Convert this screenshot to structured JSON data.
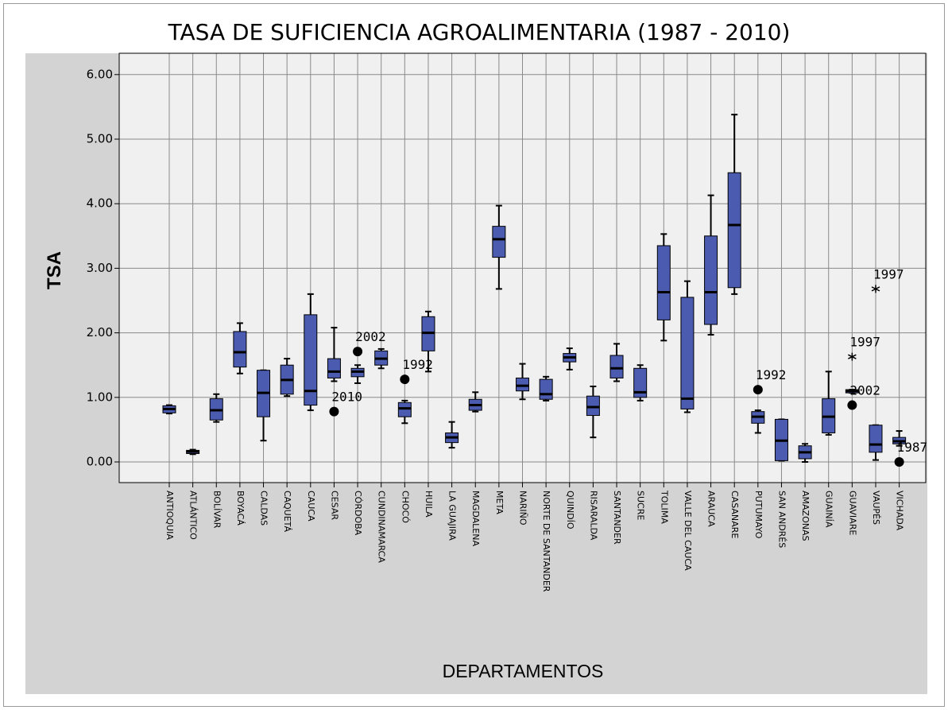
{
  "chart_data": {
    "type": "box",
    "title": "TASA DE SUFICIENCIA AGROALIMENTARIA (1987 - 2010)",
    "x_label": "DEPARTAMENTOS",
    "y_label": "TSA",
    "color": "#4a5bb0",
    "grid": true,
    "ylim": [
      -0.32,
      6.33
    ],
    "yticks": [
      {
        "value": 0,
        "label": "0.00"
      },
      {
        "value": 1,
        "label": "1.00"
      },
      {
        "value": 2,
        "label": "2.00"
      },
      {
        "value": 3,
        "label": "3.00"
      },
      {
        "value": 4,
        "label": "4.00"
      },
      {
        "value": 5,
        "label": "5.00"
      },
      {
        "value": 6,
        "label": "6.00"
      }
    ],
    "categories": [
      "ANTIOQUIA",
      "ATLÁNTICO",
      "BOLÍVAR",
      "BOYACÁ",
      "CALDAS",
      "CAQUETÁ",
      "CAUCA",
      "CESAR",
      "CÓRDOBA",
      "CUNDINAMARCA",
      "CHOCÓ",
      "HUILA",
      "LA GUAJIRA",
      "MAGDALENA",
      "META",
      "NARIÑO",
      "NORTE DE SANTANDER",
      "QUINDÍO",
      "RISARALDA",
      "SANTANDER",
      "SUCRE",
      "TOLIMA",
      "VALLE DEL CAUCA",
      "ARAUCA",
      "CASANARE",
      "PUTUMAYO",
      "SAN ANDRÉS",
      "AMAZONAS",
      "GUAINÍA",
      "GUAVIARE",
      "VAUPÉS",
      "VICHADA"
    ],
    "boxes": [
      {
        "low": 0.75,
        "q1": 0.76,
        "median": 0.82,
        "q3": 0.87,
        "high": 0.88
      },
      {
        "low": 0.12,
        "q1": 0.13,
        "median": 0.16,
        "q3": 0.18,
        "high": 0.19
      },
      {
        "low": 0.62,
        "q1": 0.65,
        "median": 0.8,
        "q3": 0.98,
        "high": 1.05
      },
      {
        "low": 1.37,
        "q1": 1.47,
        "median": 1.7,
        "q3": 2.02,
        "high": 2.15
      },
      {
        "low": 0.33,
        "q1": 0.7,
        "median": 1.07,
        "q3": 1.42,
        "high": 1.42
      },
      {
        "low": 1.02,
        "q1": 1.05,
        "median": 1.27,
        "q3": 1.5,
        "high": 1.6
      },
      {
        "low": 0.8,
        "q1": 0.88,
        "median": 1.1,
        "q3": 2.28,
        "high": 2.6
      },
      {
        "low": 1.25,
        "q1": 1.3,
        "median": 1.4,
        "q3": 1.6,
        "high": 2.08,
        "outliers": [
          {
            "value": 0.78,
            "label": "2010",
            "marker": "circle"
          }
        ]
      },
      {
        "low": 1.22,
        "q1": 1.32,
        "median": 1.4,
        "q3": 1.45,
        "high": 1.5,
        "outliers": [
          {
            "value": 1.71,
            "label": "2002",
            "marker": "circle"
          }
        ]
      },
      {
        "low": 1.45,
        "q1": 1.5,
        "median": 1.6,
        "q3": 1.72,
        "high": 1.75
      },
      {
        "low": 0.6,
        "q1": 0.7,
        "median": 0.83,
        "q3": 0.92,
        "high": 0.95,
        "outliers": [
          {
            "value": 1.28,
            "label": "1992",
            "marker": "circle"
          }
        ]
      },
      {
        "low": 1.4,
        "q1": 1.72,
        "median": 2.0,
        "q3": 2.25,
        "high": 2.33
      },
      {
        "low": 0.22,
        "q1": 0.3,
        "median": 0.38,
        "q3": 0.45,
        "high": 0.62
      },
      {
        "low": 0.78,
        "q1": 0.8,
        "median": 0.88,
        "q3": 0.97,
        "high": 1.08
      },
      {
        "low": 2.68,
        "q1": 3.17,
        "median": 3.45,
        "q3": 3.65,
        "high": 3.97
      },
      {
        "low": 0.97,
        "q1": 1.1,
        "median": 1.18,
        "q3": 1.3,
        "high": 1.52
      },
      {
        "low": 0.95,
        "q1": 0.97,
        "median": 1.05,
        "q3": 1.28,
        "high": 1.32
      },
      {
        "low": 1.43,
        "q1": 1.55,
        "median": 1.62,
        "q3": 1.68,
        "high": 1.76
      },
      {
        "low": 0.38,
        "q1": 0.72,
        "median": 0.85,
        "q3": 1.02,
        "high": 1.17
      },
      {
        "low": 1.25,
        "q1": 1.3,
        "median": 1.45,
        "q3": 1.65,
        "high": 1.83
      },
      {
        "low": 0.95,
        "q1": 1.0,
        "median": 1.08,
        "q3": 1.45,
        "high": 1.5
      },
      {
        "low": 1.88,
        "q1": 2.2,
        "median": 2.63,
        "q3": 3.35,
        "high": 3.53
      },
      {
        "low": 0.77,
        "q1": 0.82,
        "median": 0.98,
        "q3": 2.55,
        "high": 2.8
      },
      {
        "low": 1.97,
        "q1": 2.13,
        "median": 2.63,
        "q3": 3.5,
        "high": 4.13
      },
      {
        "low": 2.6,
        "q1": 2.7,
        "median": 3.67,
        "q3": 4.48,
        "high": 5.38
      },
      {
        "low": 0.45,
        "q1": 0.6,
        "median": 0.7,
        "q3": 0.78,
        "high": 0.8,
        "outliers": [
          {
            "value": 1.12,
            "label": "1992",
            "marker": "circle"
          }
        ]
      },
      {
        "low": 0.02,
        "q1": 0.02,
        "median": 0.33,
        "q3": 0.66,
        "high": 0.66
      },
      {
        "low": 0.0,
        "q1": 0.05,
        "median": 0.15,
        "q3": 0.25,
        "high": 0.28
      },
      {
        "low": 0.42,
        "q1": 0.45,
        "median": 0.7,
        "q3": 0.98,
        "high": 1.4
      },
      {
        "low": 1.07,
        "q1": 1.07,
        "median": 1.1,
        "q3": 1.12,
        "high": 1.12,
        "outliers": [
          {
            "value": 0.88,
            "label": "2002",
            "marker": "circle"
          },
          {
            "value": 1.63,
            "label": "1997",
            "marker": "star"
          }
        ]
      },
      {
        "low": 0.03,
        "q1": 0.15,
        "median": 0.27,
        "q3": 0.57,
        "high": 0.57,
        "outliers": [
          {
            "value": 2.68,
            "label": "1997",
            "marker": "star"
          }
        ]
      },
      {
        "low": 0.25,
        "q1": 0.28,
        "median": 0.32,
        "q3": 0.38,
        "high": 0.48,
        "outliers": [
          {
            "value": 0.0,
            "label": "1987",
            "marker": "circle"
          }
        ]
      }
    ]
  }
}
